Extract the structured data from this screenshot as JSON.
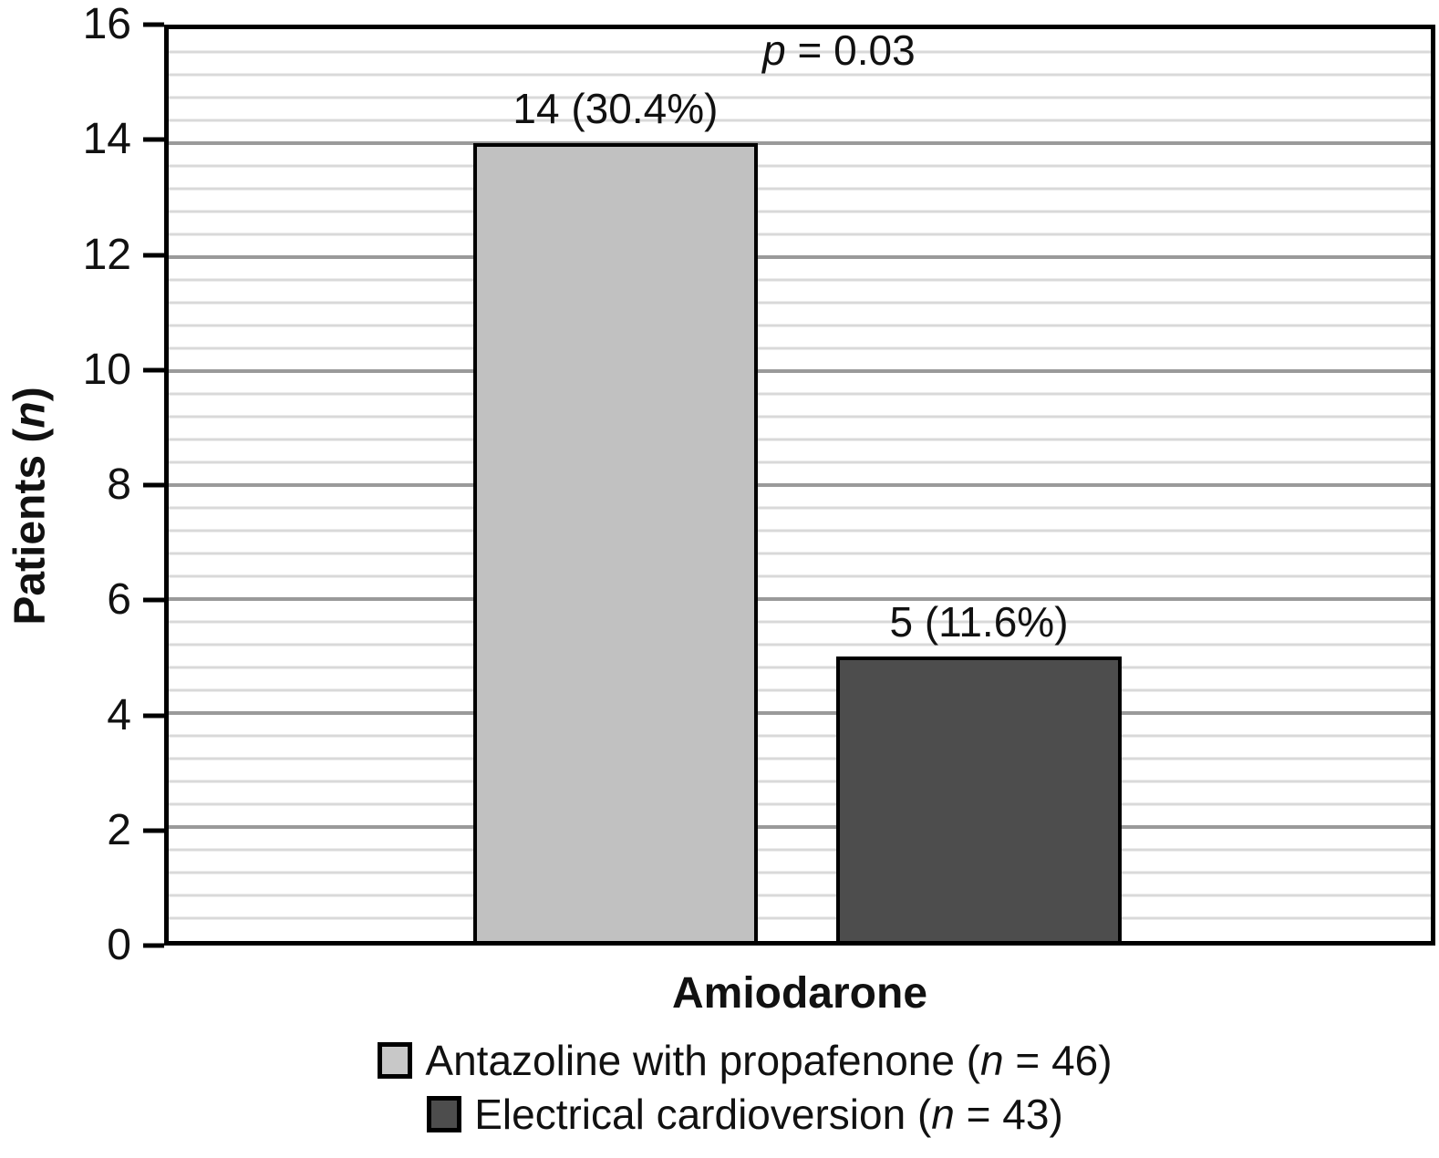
{
  "figure": {
    "y_axis_title": {
      "pre": "Patients (",
      "italic": "n",
      "post": ")"
    },
    "annotation": {
      "italic": "p",
      "post": " = 0.03"
    },
    "legend": [
      {
        "swatch_color": "#c8c8c8",
        "pre": "Antazoline with propafenone (",
        "italic": "n",
        "post": " = 46)"
      },
      {
        "swatch_color": "#4d4d4d",
        "pre": "Electrical cardioversion (",
        "italic": "n",
        "post": " = 43)"
      }
    ],
    "colors": {
      "frame": "#000000",
      "major_gridline": "#9a9a9a",
      "minor_gridline": "#d9d9d9",
      "text": "#111111",
      "background": "#ffffff"
    }
  },
  "chart_data": {
    "type": "bar",
    "title": "",
    "categories": [
      "Amiodarone"
    ],
    "series": [
      {
        "name": "Antazoline with propafenone (n = 46)",
        "values": [
          14
        ],
        "data_label": "14 (30.4%)",
        "percent": 30.4,
        "color": "#c1c1c1"
      },
      {
        "name": "Electrical cardioversion (n = 43)",
        "values": [
          5
        ],
        "data_label": "5 (11.6%)",
        "percent": 11.6,
        "color": "#4d4d4d"
      }
    ],
    "annotation": "p = 0.03",
    "xlabel": "Amiodarone",
    "ylabel": "Patients (n)",
    "ylim": [
      0,
      16
    ],
    "yticks": [
      0,
      2,
      4,
      6,
      8,
      10,
      12,
      14,
      16
    ],
    "ytick_step": 2,
    "minor_gridline_step": 0.4,
    "grid": "horizontal",
    "legend_position": "bottom"
  }
}
